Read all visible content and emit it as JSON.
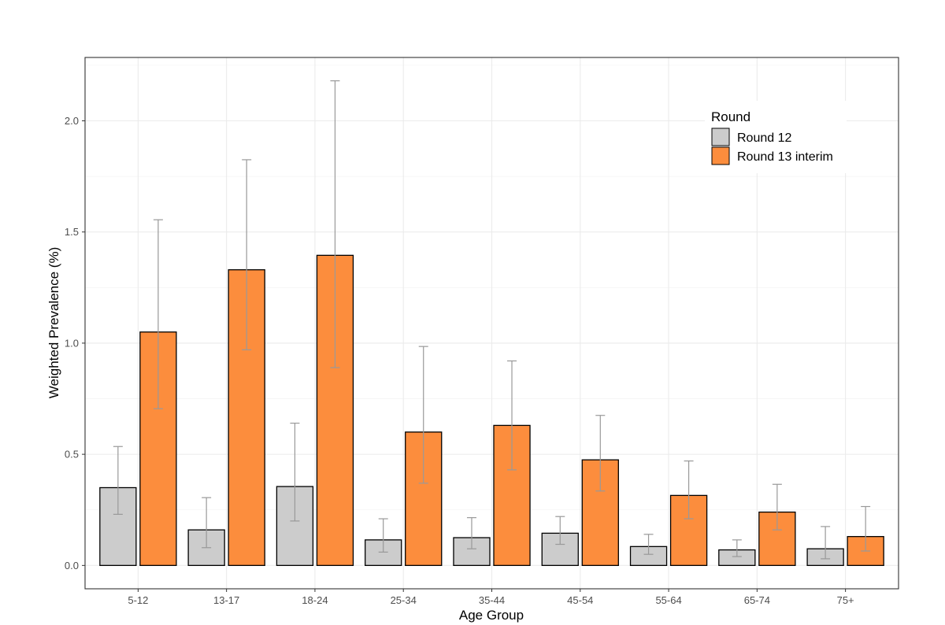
{
  "chart_data": {
    "type": "bar",
    "xlabel": "Age Group",
    "ylabel": "Weighted Prevalence (%)",
    "categories": [
      "5-12",
      "13-17",
      "18-24",
      "25-34",
      "35-44",
      "45-54",
      "55-64",
      "65-74",
      "75+"
    ],
    "series": [
      {
        "name": "Round 12",
        "color": "#cccccc",
        "values": [
          0.35,
          0.16,
          0.355,
          0.115,
          0.125,
          0.145,
          0.085,
          0.07,
          0.075
        ],
        "lower": [
          0.23,
          0.08,
          0.2,
          0.06,
          0.075,
          0.095,
          0.05,
          0.04,
          0.03
        ],
        "upper": [
          0.535,
          0.305,
          0.64,
          0.21,
          0.215,
          0.22,
          0.14,
          0.115,
          0.175
        ]
      },
      {
        "name": "Round 13 interim",
        "color": "#fc8d3d",
        "values": [
          1.05,
          1.33,
          1.395,
          0.6,
          0.63,
          0.475,
          0.315,
          0.24,
          0.13
        ],
        "lower": [
          0.705,
          0.97,
          0.89,
          0.37,
          0.43,
          0.335,
          0.21,
          0.16,
          0.065
        ],
        "upper": [
          1.555,
          1.825,
          2.18,
          0.985,
          0.92,
          0.675,
          0.47,
          0.365,
          0.265
        ]
      }
    ],
    "yticks": [
      "0.0",
      "0.5",
      "1.0",
      "1.5",
      "2.0"
    ],
    "ylim": [
      -0.105,
      2.285
    ],
    "grid": true,
    "legend": {
      "title": "Round",
      "position": "top-right"
    }
  }
}
